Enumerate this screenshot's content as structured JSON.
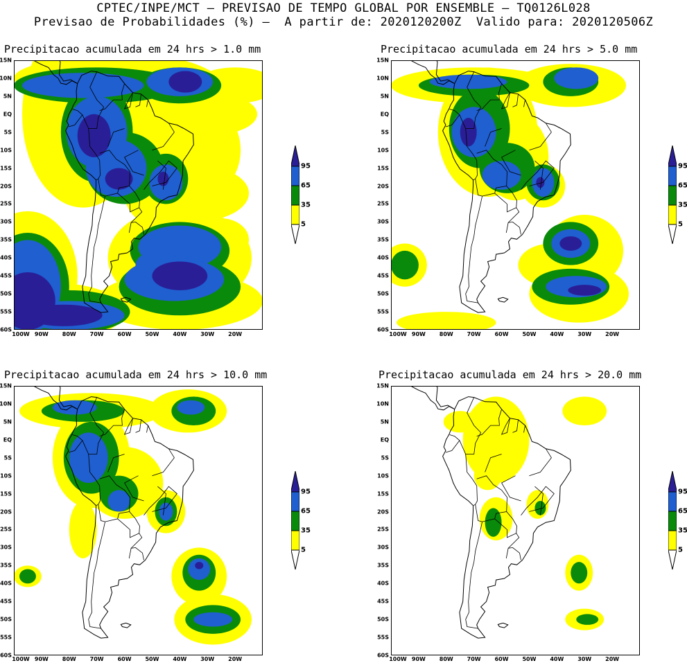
{
  "header": {
    "line1": "CPTEC/INPE/MCT – PREVISAO DE TEMPO GLOBAL POR ENSEMBLE – TQ0126L028",
    "line2": "Previsao de Probabilidades (%) –  A partir de: 2020120200Z  Valido para: 2020120506Z"
  },
  "axes": {
    "lat_labels": [
      "15N",
      "10N",
      "5N",
      "EQ",
      "5S",
      "10S",
      "15S",
      "20S",
      "25S",
      "30S",
      "35S",
      "40S",
      "45S",
      "50S",
      "55S",
      "60S"
    ],
    "lon_labels": [
      "100W",
      "90W",
      "80W",
      "70W",
      "60W",
      "50W",
      "40W",
      "30W",
      "20W"
    ]
  },
  "colorbar": {
    "ticks": [
      "95",
      "65",
      "35",
      "5"
    ],
    "colors": {
      "c5": "#ffff00",
      "c35": "#0a8a0a",
      "c65": "#1f5fd0",
      "c95": "#2a1e96"
    }
  },
  "panels": [
    {
      "title": "Precipitacao acumulada em 24 hrs > 1.0 mm"
    },
    {
      "title": "Precipitacao acumulada em 24 hrs > 5.0 mm"
    },
    {
      "title": "Precipitacao acumulada em 24 hrs > 10.0 mm"
    },
    {
      "title": "Precipitacao acumulada em 24 hrs > 20.0 mm"
    }
  ]
}
